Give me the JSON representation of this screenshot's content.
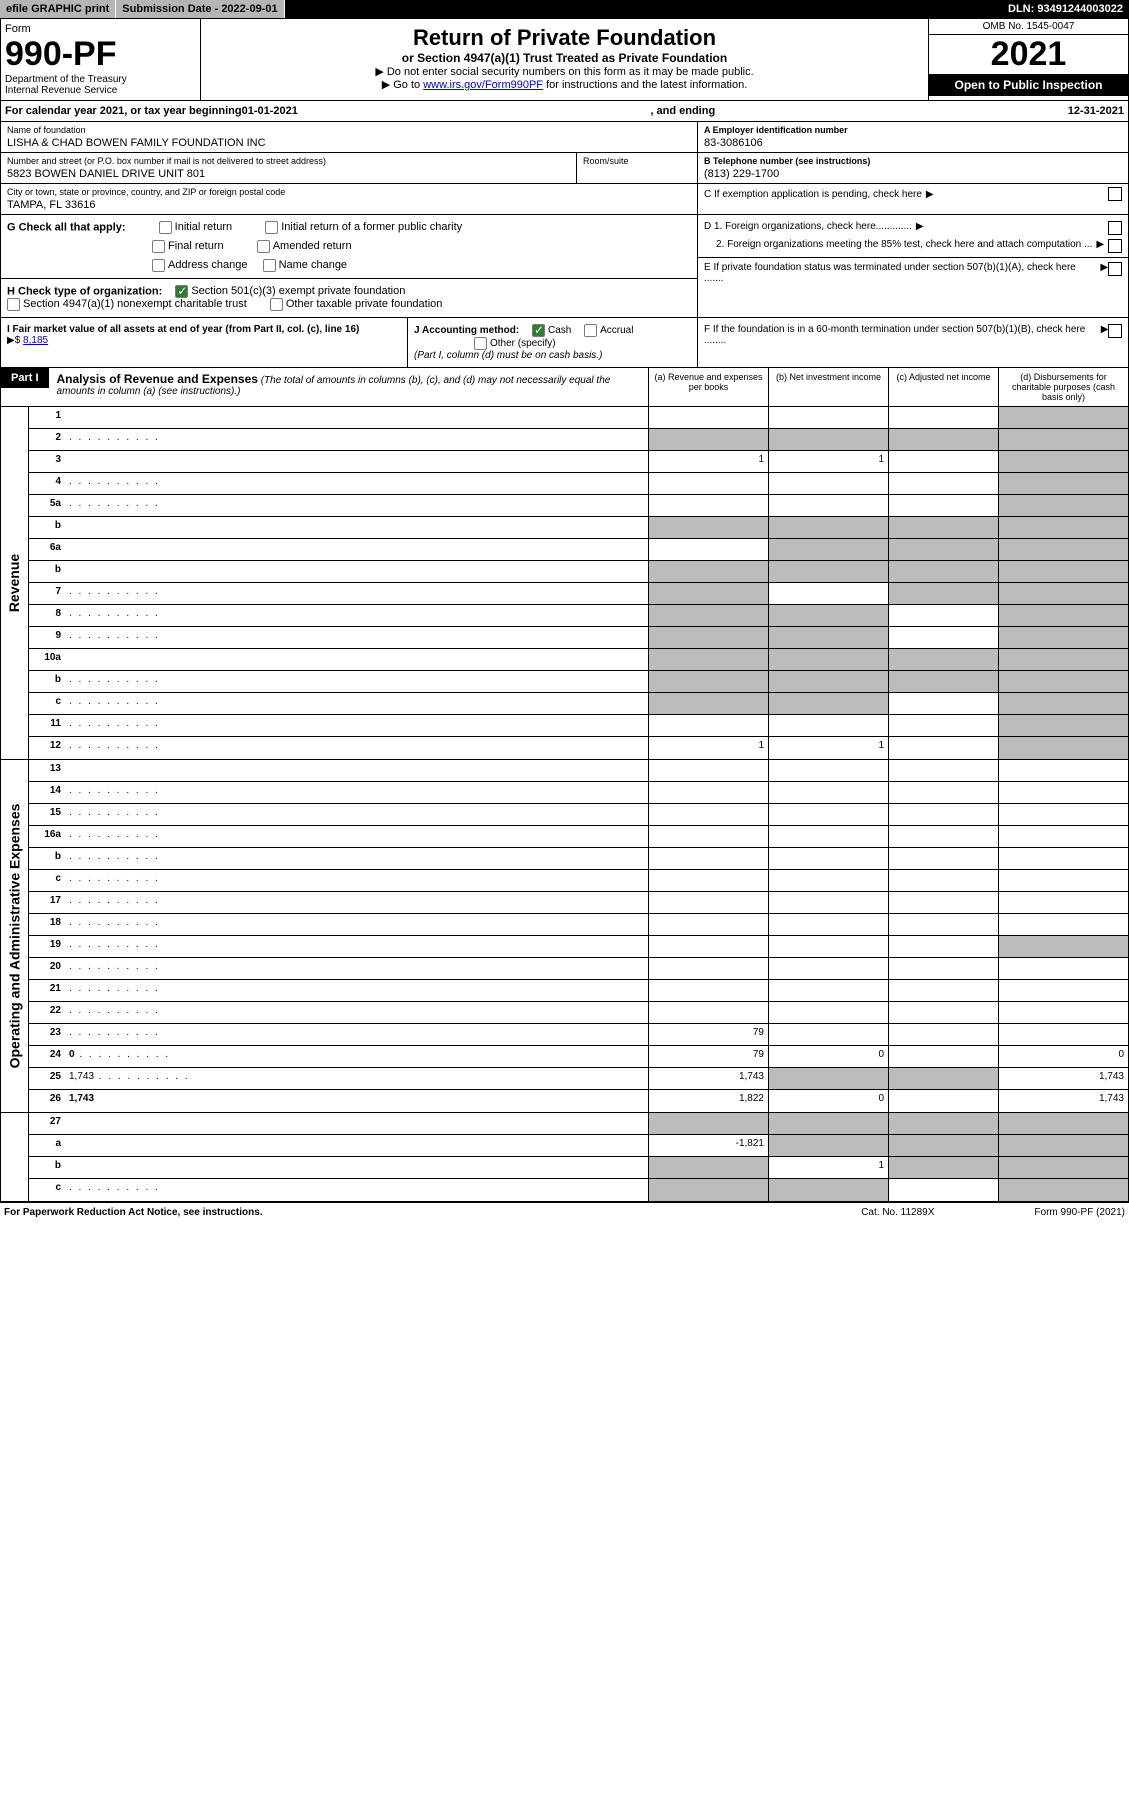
{
  "header": {
    "efile": "efile GRAPHIC print",
    "submission_label": "Submission Date - 2022-09-01",
    "dln": "DLN: 93491244003022"
  },
  "top": {
    "form_word": "Form",
    "form_no": "990-PF",
    "dept1": "Department of the Treasury",
    "dept2": "Internal Revenue Service",
    "title": "Return of Private Foundation",
    "subtitle": "or Section 4947(a)(1) Trust Treated as Private Foundation",
    "instr1": "▶ Do not enter social security numbers on this form as it may be made public.",
    "instr2_pre": "▶ Go to ",
    "instr2_link": "www.irs.gov/Form990PF",
    "instr2_post": " for instructions and the latest information.",
    "omb": "OMB No. 1545-0047",
    "year": "2021",
    "open": "Open to Public Inspection"
  },
  "calyear": {
    "pre": "For calendar year 2021, or tax year beginning ",
    "begin": "01-01-2021",
    "mid": ", and ending ",
    "end": "12-31-2021"
  },
  "entity": {
    "name_label": "Name of foundation",
    "name": "LISHA & CHAD BOWEN FAMILY FOUNDATION INC",
    "addr_label": "Number and street (or P.O. box number if mail is not delivered to street address)",
    "addr": "5823 BOWEN DANIEL DRIVE UNIT 801",
    "room_label": "Room/suite",
    "city_label": "City or town, state or province, country, and ZIP or foreign postal code",
    "city": "TAMPA, FL  33616",
    "ein_label": "A Employer identification number",
    "ein": "83-3086106",
    "tel_label": "B Telephone number (see instructions)",
    "tel": "(813) 229-1700",
    "c": "C If exemption application is pending, check here",
    "d1": "D 1. Foreign organizations, check here.............",
    "d2": "2. Foreign organizations meeting the 85% test, check here and attach computation ...",
    "e": "E  If private foundation status was terminated under section 507(b)(1)(A), check here .......",
    "f": "F  If the foundation is in a 60-month termination under section 507(b)(1)(B), check here ........"
  },
  "g": {
    "label": "G Check all that apply:",
    "opts": [
      "Initial return",
      "Final return",
      "Address change",
      "Initial return of a former public charity",
      "Amended return",
      "Name change"
    ]
  },
  "h": {
    "label": "H Check type of organization:",
    "o1": "Section 501(c)(3) exempt private foundation",
    "o2": "Section 4947(a)(1) nonexempt charitable trust",
    "o3": "Other taxable private foundation"
  },
  "i": {
    "label": "I Fair market value of all assets at end of year (from Part II, col. (c), line 16)",
    "arrow": "▶$",
    "val": "8,185"
  },
  "j": {
    "label": "J Accounting method:",
    "cash": "Cash",
    "accrual": "Accrual",
    "other": "Other (specify)",
    "note": "(Part I, column (d) must be on cash basis.)"
  },
  "part1": {
    "badge": "Part I",
    "title": "Analysis of Revenue and Expenses",
    "sub": "(The total of amounts in columns (b), (c), and (d) may not necessarily equal the amounts in column (a) (see instructions).)",
    "col_a": "(a) Revenue and expenses per books",
    "col_b": "(b) Net investment income",
    "col_c": "(c) Adjusted net income",
    "col_d": "(d) Disbursements for charitable purposes (cash basis only)"
  },
  "side": {
    "rev": "Revenue",
    "exp": "Operating and Administrative Expenses"
  },
  "rows_rev": [
    {
      "n": "1",
      "d": "",
      "a": "",
      "b": "",
      "c": "",
      "sd": true
    },
    {
      "n": "2",
      "d": "",
      "dots": true,
      "a": "",
      "b": "",
      "c": "",
      "sa": true,
      "sb": true,
      "sc": true,
      "sd": true
    },
    {
      "n": "3",
      "d": "",
      "a": "1",
      "b": "1",
      "c": "",
      "sd": true
    },
    {
      "n": "4",
      "d": "",
      "dots": true,
      "a": "",
      "b": "",
      "c": "",
      "sd": true
    },
    {
      "n": "5a",
      "d": "",
      "dots": true,
      "a": "",
      "b": "",
      "c": "",
      "sd": true
    },
    {
      "n": "b",
      "d": "",
      "a": "",
      "b": "",
      "c": "",
      "sa": true,
      "sb": true,
      "sc": true,
      "sd": true
    },
    {
      "n": "6a",
      "d": "",
      "a": "",
      "b": "",
      "c": "",
      "sb": true,
      "sc": true,
      "sd": true
    },
    {
      "n": "b",
      "d": "",
      "a": "",
      "b": "",
      "c": "",
      "sa": true,
      "sb": true,
      "sc": true,
      "sd": true
    },
    {
      "n": "7",
      "d": "",
      "dots": true,
      "a": "",
      "b": "",
      "c": "",
      "sa": true,
      "sc": true,
      "sd": true
    },
    {
      "n": "8",
      "d": "",
      "dots": true,
      "a": "",
      "b": "",
      "c": "",
      "sa": true,
      "sb": true,
      "sd": true
    },
    {
      "n": "9",
      "d": "",
      "dots": true,
      "a": "",
      "b": "",
      "c": "",
      "sa": true,
      "sb": true,
      "sd": true
    },
    {
      "n": "10a",
      "d": "",
      "a": "",
      "b": "",
      "c": "",
      "sa": true,
      "sb": true,
      "sc": true,
      "sd": true
    },
    {
      "n": "b",
      "d": "",
      "dots": true,
      "a": "",
      "b": "",
      "c": "",
      "sa": true,
      "sb": true,
      "sc": true,
      "sd": true
    },
    {
      "n": "c",
      "d": "",
      "dots": true,
      "a": "",
      "b": "",
      "c": "",
      "sa": true,
      "sb": true,
      "sd": true
    },
    {
      "n": "11",
      "d": "",
      "dots": true,
      "a": "",
      "b": "",
      "c": "",
      "sd": true
    },
    {
      "n": "12",
      "d": "",
      "dots": true,
      "bold": true,
      "a": "1",
      "b": "1",
      "c": "",
      "sd": true
    }
  ],
  "rows_exp": [
    {
      "n": "13",
      "d": "",
      "a": "",
      "b": "",
      "c": ""
    },
    {
      "n": "14",
      "d": "",
      "dots": true,
      "a": "",
      "b": "",
      "c": ""
    },
    {
      "n": "15",
      "d": "",
      "dots": true,
      "a": "",
      "b": "",
      "c": ""
    },
    {
      "n": "16a",
      "d": "",
      "dots": true,
      "a": "",
      "b": "",
      "c": ""
    },
    {
      "n": "b",
      "d": "",
      "dots": true,
      "a": "",
      "b": "",
      "c": ""
    },
    {
      "n": "c",
      "d": "",
      "dots": true,
      "a": "",
      "b": "",
      "c": ""
    },
    {
      "n": "17",
      "d": "",
      "dots": true,
      "a": "",
      "b": "",
      "c": ""
    },
    {
      "n": "18",
      "d": "",
      "dots": true,
      "a": "",
      "b": "",
      "c": ""
    },
    {
      "n": "19",
      "d": "",
      "dots": true,
      "a": "",
      "b": "",
      "c": "",
      "sd": true
    },
    {
      "n": "20",
      "d": "",
      "dots": true,
      "a": "",
      "b": "",
      "c": ""
    },
    {
      "n": "21",
      "d": "",
      "dots": true,
      "a": "",
      "b": "",
      "c": ""
    },
    {
      "n": "22",
      "d": "",
      "dots": true,
      "a": "",
      "b": "",
      "c": ""
    },
    {
      "n": "23",
      "d": "",
      "dots": true,
      "a": "79",
      "b": "",
      "c": ""
    },
    {
      "n": "24",
      "d": "0",
      "dots": true,
      "bold": true,
      "a": "79",
      "b": "0",
      "c": ""
    },
    {
      "n": "25",
      "d": "1,743",
      "dots": true,
      "a": "1,743",
      "b": "",
      "c": "",
      "sb": true,
      "sc": true
    },
    {
      "n": "26",
      "d": "1,743",
      "bold": true,
      "a": "1,822",
      "b": "0",
      "c": ""
    }
  ],
  "rows_bot": [
    {
      "n": "27",
      "d": "",
      "a": "",
      "b": "",
      "c": "",
      "sa": true,
      "sb": true,
      "sc": true,
      "sd": true
    },
    {
      "n": "a",
      "d": "",
      "bold": true,
      "a": "-1,821",
      "b": "",
      "c": "",
      "sb": true,
      "sc": true,
      "sd": true
    },
    {
      "n": "b",
      "d": "",
      "bold": true,
      "a": "",
      "b": "1",
      "c": "",
      "sa": true,
      "sc": true,
      "sd": true
    },
    {
      "n": "c",
      "d": "",
      "dots": true,
      "bold": true,
      "a": "",
      "b": "",
      "c": "",
      "sa": true,
      "sb": true,
      "sd": true
    }
  ],
  "footer": {
    "left": "For Paperwork Reduction Act Notice, see instructions.",
    "mid": "Cat. No. 11289X",
    "right": "Form 990-PF (2021)"
  }
}
